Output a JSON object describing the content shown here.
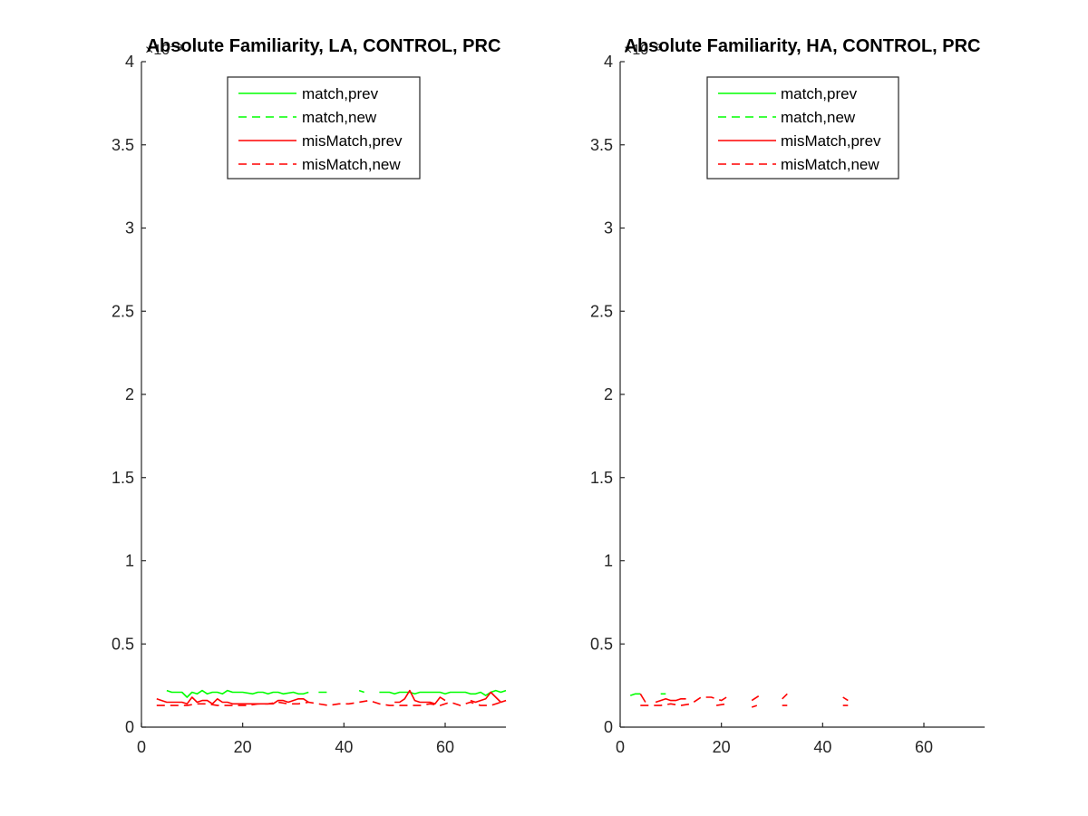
{
  "chart_data": [
    {
      "type": "line",
      "title": "Absolute Familiarity, LA, CONTROL, PRC",
      "xlabel": "",
      "ylabel": "",
      "xlim": [
        0,
        72
      ],
      "ylim": [
        0,
        0.004
      ],
      "x_ticks": [
        0,
        20,
        40,
        60
      ],
      "x_tick_labels": [
        "0",
        "20",
        "40",
        "60"
      ],
      "y_ticks": [
        0,
        0.0005,
        0.001,
        0.0015,
        0.002,
        0.0025,
        0.003,
        0.0035,
        0.004
      ],
      "y_tick_labels": [
        "0",
        "0.5",
        "1",
        "1.5",
        "2",
        "2.5",
        "3",
        "3.5",
        "4"
      ],
      "y_exponent_label": "×10⁻³",
      "legend_position": "top-center",
      "series": [
        {
          "name": "match,prev",
          "color": "#00ff00",
          "dash": "solid",
          "points": [
            [
              5,
              0.00022
            ],
            [
              6,
              0.00021
            ],
            [
              7,
              0.00021
            ],
            [
              8,
              0.00021
            ],
            [
              9,
              0.00018
            ],
            [
              10,
              0.00021
            ],
            [
              11,
              0.0002
            ],
            [
              12,
              0.00022
            ],
            [
              13,
              0.0002
            ],
            [
              14,
              0.00021
            ],
            [
              15,
              0.00021
            ],
            [
              16,
              0.0002
            ],
            [
              17,
              0.00022
            ],
            [
              18,
              0.00021
            ],
            [
              19,
              0.00021
            ],
            [
              20,
              0.00021
            ],
            [
              22,
              0.0002
            ],
            [
              23,
              0.00021
            ],
            [
              24,
              0.00021
            ],
            [
              25,
              0.0002
            ],
            [
              26,
              0.00021
            ],
            [
              27,
              0.00021
            ],
            [
              28,
              0.0002
            ],
            [
              30,
              0.00021
            ],
            [
              31,
              0.0002
            ],
            [
              32,
              0.0002
            ],
            [
              33,
              0.00021
            ],
            [
              null,
              null
            ],
            [
              44,
              0.00021
            ],
            [
              null,
              null
            ],
            [
              47,
              0.00021
            ],
            [
              48,
              0.00021
            ],
            [
              49,
              0.00021
            ],
            [
              50,
              0.0002
            ],
            [
              51,
              0.00021
            ],
            [
              52,
              0.00021
            ],
            [
              53,
              0.00021
            ],
            [
              54,
              0.0002
            ],
            [
              55,
              0.00021
            ],
            [
              56,
              0.00021
            ],
            [
              57,
              0.00021
            ],
            [
              58,
              0.00021
            ],
            [
              59,
              0.00021
            ],
            [
              60,
              0.0002
            ],
            [
              61,
              0.00021
            ],
            [
              62,
              0.00021
            ],
            [
              64,
              0.00021
            ],
            [
              65,
              0.0002
            ],
            [
              66,
              0.0002
            ],
            [
              67,
              0.00021
            ],
            [
              68,
              0.00019
            ],
            [
              69,
              0.00021
            ],
            [
              70,
              0.00022
            ],
            [
              71,
              0.00021
            ],
            [
              72,
              0.00022
            ]
          ]
        },
        {
          "name": "match,new",
          "color": "#00ff00",
          "dash": "dashed",
          "points": [
            [
              35,
              0.00021
            ],
            [
              36,
              0.00021
            ],
            [
              37,
              0.00021
            ],
            [
              null,
              null
            ],
            [
              43,
              0.00022
            ],
            [
              44,
              0.00021
            ]
          ]
        },
        {
          "name": "misMatch,prev",
          "color": "#ff0000",
          "dash": "solid",
          "points": [
            [
              3,
              0.00017
            ],
            [
              4,
              0.00016
            ],
            [
              5,
              0.00015
            ],
            [
              7,
              0.00015
            ],
            [
              8,
              0.00015
            ],
            [
              9,
              0.00014
            ],
            [
              10,
              0.00018
            ],
            [
              11,
              0.00015
            ],
            [
              12,
              0.00016
            ],
            [
              13,
              0.00016
            ],
            [
              14,
              0.00014
            ],
            [
              15,
              0.00017
            ],
            [
              16,
              0.00015
            ],
            [
              17,
              0.00015
            ],
            [
              18,
              0.00014
            ],
            [
              20,
              0.00014
            ],
            [
              22,
              0.00014
            ],
            [
              24,
              0.00014
            ],
            [
              25,
              0.00014
            ],
            [
              26,
              0.00014
            ],
            [
              27,
              0.00016
            ],
            [
              28,
              0.00016
            ],
            [
              29,
              0.00015
            ],
            [
              30,
              0.00016
            ],
            [
              31,
              0.00017
            ],
            [
              32,
              0.00017
            ],
            [
              33,
              0.00015
            ],
            [
              null,
              null
            ],
            [
              50,
              0.00015
            ],
            [
              51,
              0.00015
            ],
            [
              52,
              0.00017
            ],
            [
              53,
              0.00022
            ],
            [
              54,
              0.00016
            ],
            [
              55,
              0.00015
            ],
            [
              56,
              0.00015
            ],
            [
              57,
              0.00015
            ],
            [
              58,
              0.00014
            ],
            [
              59,
              0.00018
            ],
            [
              60,
              0.00016
            ],
            [
              null,
              null
            ],
            [
              65,
              0.00016
            ],
            [
              66,
              0.00015
            ],
            [
              67,
              0.00016
            ],
            [
              68,
              0.00017
            ],
            [
              69,
              0.00021
            ],
            [
              70,
              0.00018
            ],
            [
              71,
              0.00015
            ],
            [
              72,
              0.00016
            ]
          ]
        },
        {
          "name": "misMatch,new",
          "color": "#ff0000",
          "dash": "dashed",
          "points": [
            [
              3,
              0.00013
            ],
            [
              5,
              0.00013
            ],
            [
              7,
              0.00013
            ],
            [
              9,
              0.00013
            ],
            [
              11,
              0.00014
            ],
            [
              13,
              0.00014
            ],
            [
              15,
              0.00013
            ],
            [
              17,
              0.00013
            ],
            [
              19,
              0.00013
            ],
            [
              21,
              0.00013
            ],
            [
              23,
              0.00014
            ],
            [
              25,
              0.00014
            ],
            [
              27,
              0.00015
            ],
            [
              29,
              0.00014
            ],
            [
              31,
              0.00014
            ],
            [
              33,
              0.00015
            ],
            [
              35,
              0.00014
            ],
            [
              37,
              0.00013
            ],
            [
              39,
              0.00014
            ],
            [
              41,
              0.00014
            ],
            [
              43,
              0.00015
            ],
            [
              45,
              0.00016
            ],
            [
              47,
              0.00014
            ],
            [
              49,
              0.00013
            ],
            [
              51,
              0.00013
            ],
            [
              53,
              0.00013
            ],
            [
              55,
              0.00013
            ],
            [
              57,
              0.00014
            ],
            [
              59,
              0.00013
            ],
            [
              61,
              0.00015
            ],
            [
              63,
              0.00013
            ],
            [
              64,
              0.00014
            ],
            [
              65,
              0.00015
            ],
            [
              67,
              0.00013
            ],
            [
              69,
              0.00013
            ],
            [
              71,
              0.00015
            ],
            [
              72,
              0.00016
            ]
          ]
        }
      ]
    },
    {
      "type": "line",
      "title": "Absolute Familiarity, HA, CONTROL, PRC",
      "xlabel": "",
      "ylabel": "",
      "xlim": [
        0,
        72
      ],
      "ylim": [
        0,
        0.004
      ],
      "x_ticks": [
        0,
        20,
        40,
        60
      ],
      "x_tick_labels": [
        "0",
        "20",
        "40",
        "60"
      ],
      "y_ticks": [
        0,
        0.0005,
        0.001,
        0.0015,
        0.002,
        0.0025,
        0.003,
        0.0035,
        0.004
      ],
      "y_tick_labels": [
        "0",
        "0.5",
        "1",
        "1.5",
        "2",
        "2.5",
        "3",
        "3.5",
        "4"
      ],
      "y_exponent_label": "×10⁻³",
      "legend_position": "top-center",
      "series": [
        {
          "name": "match,prev",
          "color": "#00ff00",
          "dash": "solid",
          "points": [
            [
              2,
              0.00019
            ],
            [
              3,
              0.0002
            ],
            [
              4,
              0.0002
            ]
          ]
        },
        {
          "name": "match,new",
          "color": "#00ff00",
          "dash": "dashed",
          "points": [
            [
              8,
              0.0002
            ],
            [
              9,
              0.0002
            ]
          ]
        },
        {
          "name": "misMatch,prev",
          "color": "#ff0000",
          "dash": "solid",
          "points": [
            [
              4,
              0.0002
            ],
            [
              5,
              0.00015
            ],
            [
              null,
              null
            ],
            [
              7,
              0.00015
            ],
            [
              8,
              0.00016
            ],
            [
              9,
              0.00017
            ],
            [
              10,
              0.00016
            ],
            [
              11,
              0.00016
            ],
            [
              12,
              0.00017
            ],
            [
              13,
              0.00017
            ]
          ]
        },
        {
          "name": "misMatch,new",
          "color": "#ff0000",
          "dash": "dashed",
          "points": [
            [
              4,
              0.00013
            ],
            [
              6,
              0.00013
            ],
            [
              8,
              0.00013
            ],
            [
              10,
              0.00014
            ],
            [
              12,
              0.00013
            ],
            [
              14,
              0.00014
            ],
            [
              16,
              0.00018
            ],
            [
              18,
              0.00018
            ],
            [
              20,
              0.00016
            ],
            [
              21,
              0.00018
            ],
            [
              null,
              null
            ],
            [
              19,
              0.00013
            ],
            [
              21,
              0.00014
            ],
            [
              null,
              null
            ],
            [
              26,
              0.00012
            ],
            [
              27,
              0.00013
            ],
            [
              null,
              null
            ],
            [
              26,
              0.00016
            ],
            [
              28,
              0.0002
            ],
            [
              null,
              null
            ],
            [
              32,
              0.00013
            ],
            [
              33,
              0.00013
            ],
            [
              null,
              null
            ],
            [
              32,
              0.00017
            ],
            [
              33,
              0.0002
            ],
            [
              null,
              null
            ],
            [
              44,
              0.00013
            ],
            [
              45,
              0.00013
            ],
            [
              null,
              null
            ],
            [
              44,
              0.00018
            ],
            [
              45,
              0.00016
            ]
          ]
        }
      ]
    }
  ]
}
